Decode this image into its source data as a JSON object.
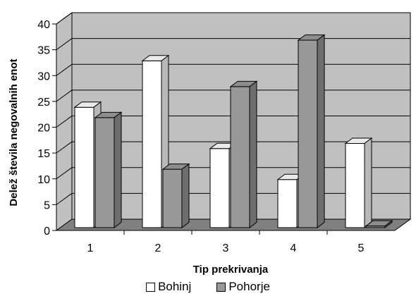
{
  "chart_data": {
    "type": "bar",
    "categories": [
      "1",
      "2",
      "3",
      "4",
      "5"
    ],
    "series": [
      {
        "name": "Bohinj",
        "values": [
          24,
          33,
          16,
          10,
          17
        ],
        "color": "#ffffff"
      },
      {
        "name": "Pohorje",
        "values": [
          22,
          12,
          28,
          37,
          1
        ],
        "color": "#999999"
      }
    ],
    "xlabel": "Tip prekrivanja",
    "ylabel": "Delež števila negovalnih enot",
    "ylim": [
      0,
      40
    ],
    "yticks": [
      "0",
      "5",
      "10",
      "15",
      "20",
      "25",
      "30",
      "35",
      "40"
    ],
    "grid": true,
    "legend_position": "bottom",
    "wall_color": "#c0c0c0",
    "floor_color": "#808080"
  }
}
